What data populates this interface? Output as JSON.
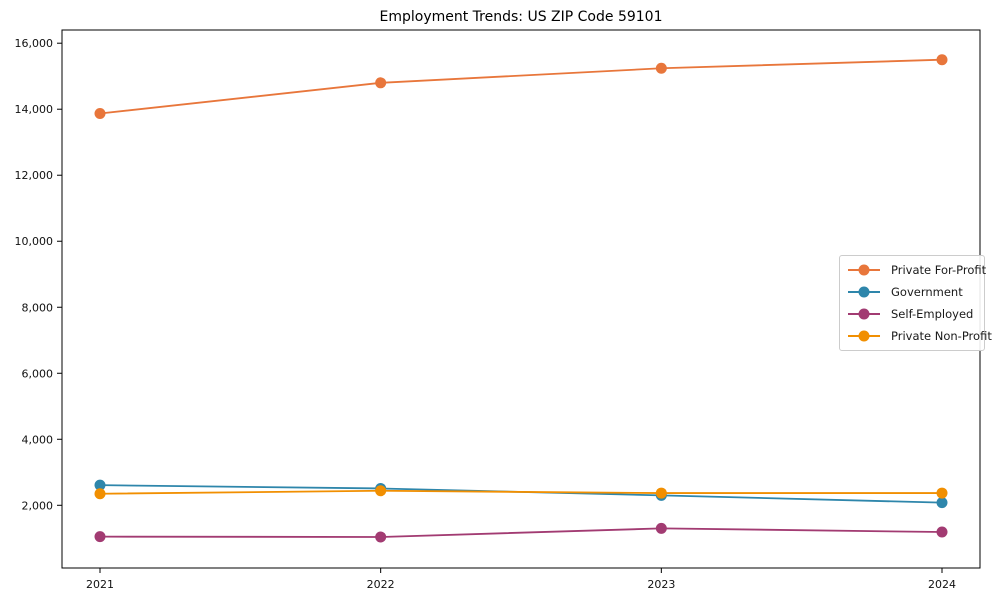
{
  "chart_data": {
    "type": "line",
    "title": "Employment Trends: US ZIP Code 59101",
    "categories": [
      "2021",
      "2022",
      "2023",
      "2024"
    ],
    "series": [
      {
        "name": "Private For-Profit",
        "color": "#E8763B",
        "values": [
          13870,
          14800,
          15240,
          15500
        ]
      },
      {
        "name": "Government",
        "color": "#2E86AB",
        "values": [
          2610,
          2510,
          2300,
          2080
        ]
      },
      {
        "name": "Self-Employed",
        "color": "#A23B72",
        "values": [
          1050,
          1040,
          1300,
          1190
        ]
      },
      {
        "name": "Private Non-Profit",
        "color": "#F18F01",
        "values": [
          2350,
          2440,
          2370,
          2370
        ]
      }
    ],
    "xlabel": "",
    "ylabel": "",
    "ylim": [
      100,
      16400
    ],
    "yticks": [
      2000,
      4000,
      6000,
      8000,
      10000,
      12000,
      14000,
      16000
    ],
    "ytick_labels": [
      "2,000",
      "4,000",
      "6,000",
      "8,000",
      "10,000",
      "12,000",
      "14,000",
      "16,000"
    ],
    "grid": false,
    "legend_position": "center-right",
    "marker": "circle",
    "axis_color": "#000000",
    "tick_label_color": "#111111"
  }
}
